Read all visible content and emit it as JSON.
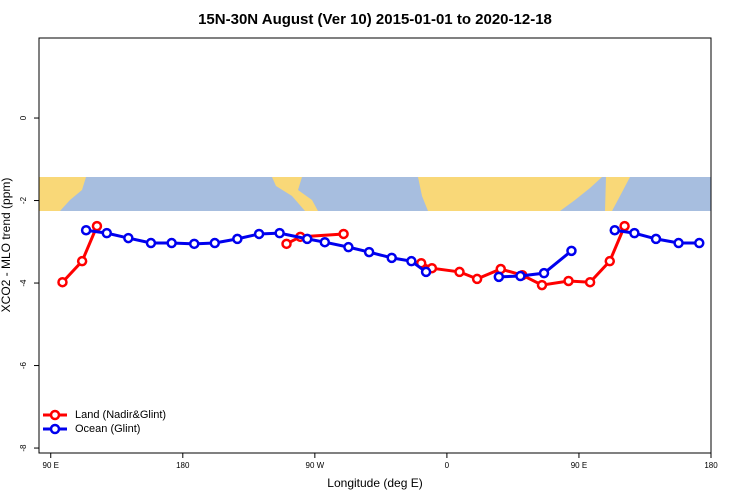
{
  "chart_data": {
    "type": "line",
    "title": "15N-30N August (Ver 10)   2015-01-01 to 2020-12-18",
    "x_label": "Longitude (deg E)",
    "y_label": "XCO2 - MLO trend (ppm)",
    "xlim": [
      82,
      540
    ],
    "ylim": [
      -8.12,
      1.94
    ],
    "xticks": [
      {
        "value": 90,
        "label": "90 E"
      },
      {
        "value": 180,
        "label": "180"
      },
      {
        "value": 270,
        "label": "90 W"
      },
      {
        "value": 360,
        "label": "0"
      },
      {
        "value": 450,
        "label": "90 E"
      },
      {
        "value": 540,
        "label": "180"
      }
    ],
    "yticks": [
      0,
      -2,
      -4,
      -6,
      -8
    ],
    "legend": "bottomleft",
    "series": [
      {
        "name": "Land (Nadir&Glint)",
        "color": "#ff0000",
        "x": [
          98.0,
          111.4,
          121.5,
          null,
          250.7,
          260.1,
          289.6,
          null,
          342.5,
          349.8,
          368.6,
          380.6,
          396.7,
          411.4,
          424.8,
          442.9,
          457.6,
          471.0,
          481.1
        ],
        "values": [
          -3.98,
          -3.47,
          -2.62,
          null,
          -3.05,
          -2.88,
          -2.81,
          null,
          -3.52,
          -3.64,
          -3.73,
          -3.9,
          -3.66,
          -3.81,
          -4.05,
          -3.95,
          -3.98,
          -3.47,
          -2.62
        ]
      },
      {
        "name": "Ocean (Glint)",
        "color": "#0000ee",
        "x": [
          114.1,
          128.2,
          142.9,
          158.3,
          172.4,
          187.8,
          201.8,
          217.2,
          232.0,
          246.0,
          264.8,
          276.8,
          292.9,
          307.0,
          322.4,
          335.8,
          345.8,
          null,
          395.4,
          410.1,
          426.2,
          444.9,
          null,
          474.4,
          487.8,
          502.5,
          517.9,
          532.0
        ],
        "values": [
          -2.72,
          -2.79,
          -2.91,
          -3.03,
          -3.03,
          -3.05,
          -3.03,
          -2.93,
          -2.81,
          -2.79,
          -2.93,
          -3.01,
          -3.13,
          -3.25,
          -3.39,
          -3.47,
          -3.73,
          null,
          -3.85,
          -3.83,
          -3.76,
          -3.22,
          null,
          -2.72,
          -2.79,
          -2.93,
          -3.03,
          -3.03
        ]
      }
    ]
  }
}
